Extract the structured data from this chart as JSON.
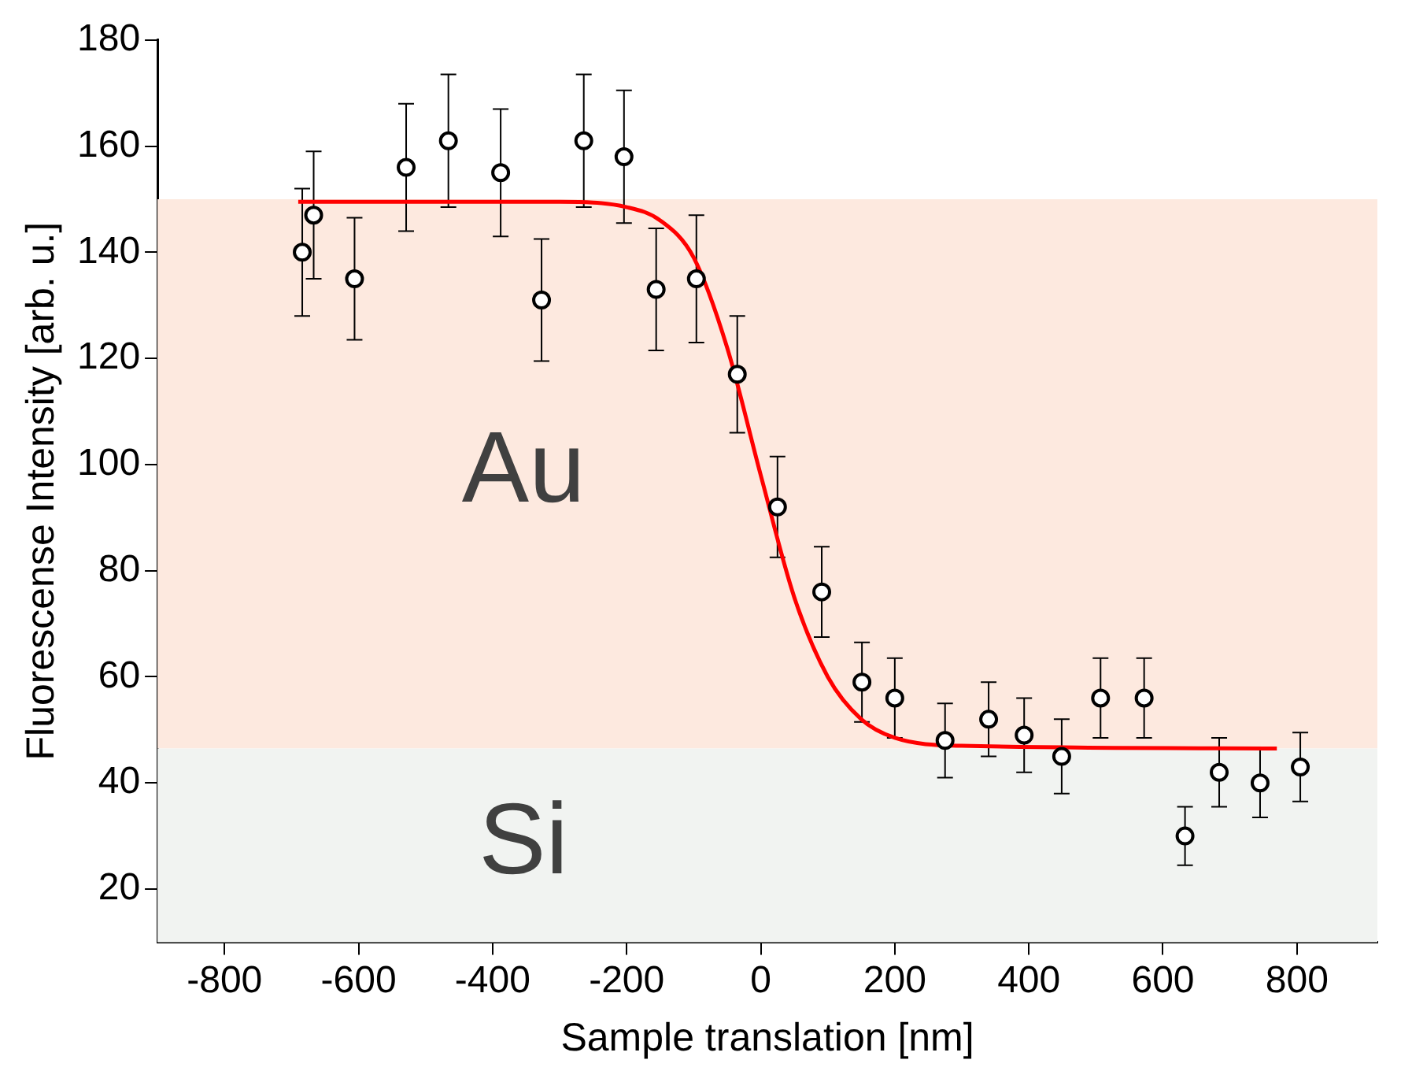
{
  "chart_data": {
    "type": "scatter",
    "xlabel": "Sample translation [nm]",
    "ylabel": "Fluorescense Intensity [arb. u.]",
    "xlim": [
      -900,
      920
    ],
    "ylim": [
      10,
      180
    ],
    "xticks": [
      -800,
      -600,
      -400,
      -200,
      0,
      200,
      400,
      600,
      800
    ],
    "yticks": [
      20,
      40,
      60,
      80,
      100,
      120,
      140,
      160,
      180
    ],
    "grid": false,
    "legend": false,
    "marker": "circle",
    "bands": [
      {
        "axis": "y",
        "from": 46.5,
        "to": 150,
        "label": "Au",
        "color": "#fde9df"
      },
      {
        "axis": "y",
        "from": 10,
        "to": 46.5,
        "label": "Si",
        "color": "#f1f3f1"
      }
    ],
    "series": [
      {
        "color": "#000000",
        "x": [
          -684,
          -667,
          -606,
          -529,
          -466,
          -388,
          -327,
          -264,
          -204,
          -156,
          -96,
          -35,
          25,
          91,
          151,
          200,
          275,
          340,
          393,
          449,
          507,
          572,
          633,
          684,
          745,
          805
        ],
        "values": [
          140,
          147,
          135,
          156,
          161,
          155,
          131,
          161,
          158,
          133,
          135,
          117,
          92,
          76,
          59,
          56,
          48,
          52,
          49,
          45,
          56,
          56,
          30,
          42,
          40,
          43
        ],
        "errors": [
          12,
          12,
          11.5,
          12,
          12.5,
          12,
          11.5,
          12.5,
          12.5,
          11.5,
          12,
          11,
          9.5,
          8.5,
          7.5,
          7.5,
          7,
          7,
          7,
          7,
          7.5,
          7.5,
          5.5,
          6.5,
          6.5,
          6.5
        ]
      },
      {
        "type": "line",
        "color": "#ff0000",
        "line_style": "solid",
        "marker": "none",
        "x": [
          -690,
          -300,
          -200,
          -150,
          -100,
          -50,
          0,
          50,
          100,
          150,
          200,
          300,
          770
        ],
        "values": [
          149.5,
          149.5,
          148.5,
          146,
          139,
          122,
          98,
          75,
          60,
          52,
          48.5,
          47,
          46.5
        ]
      }
    ]
  }
}
